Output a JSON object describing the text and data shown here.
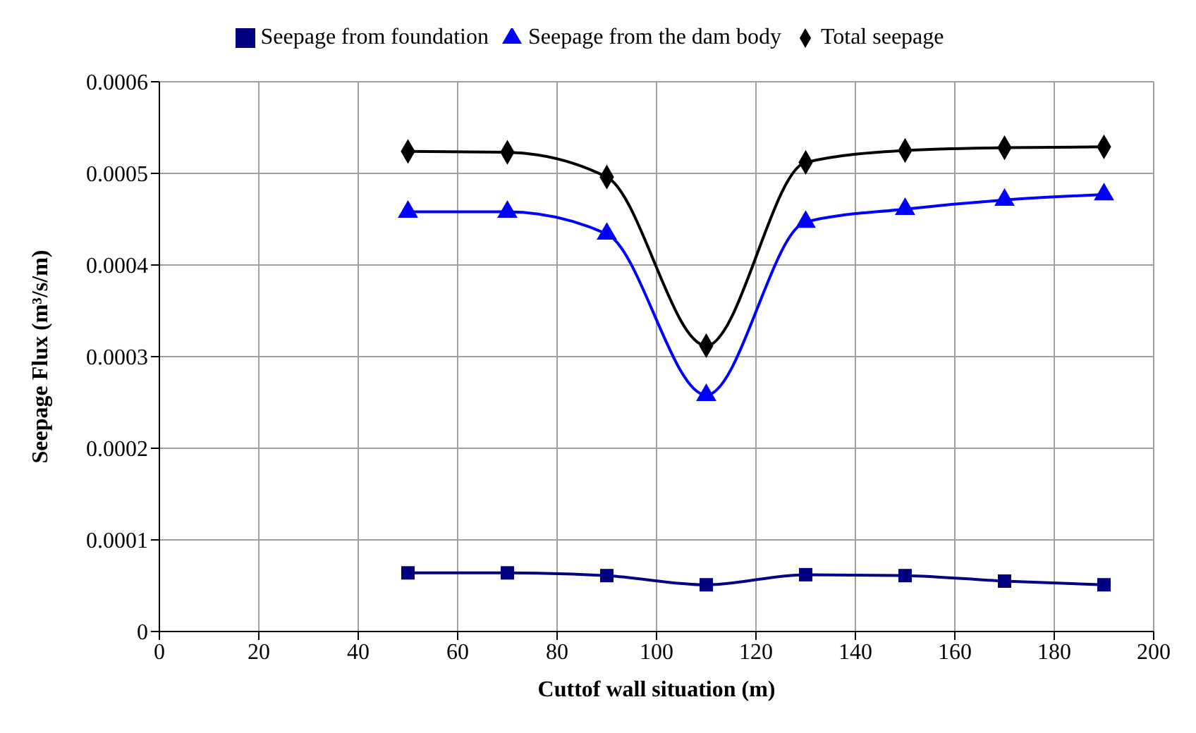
{
  "chart_data": {
    "type": "line",
    "xlabel": "Cuttof wall situation (m)",
    "ylabel": "Seepage Flux (m³/s/m)",
    "x": [
      50,
      70,
      90,
      110,
      130,
      150,
      170,
      190
    ],
    "series": [
      {
        "name": "Total seepage",
        "color": "#000000",
        "marker": "diamond",
        "values": [
          0.000524,
          0.000523,
          0.000496,
          0.000312,
          0.000512,
          0.000525,
          0.000528,
          0.000529
        ]
      },
      {
        "name": "Seepage from foundation",
        "color": "#000080",
        "marker": "square",
        "values": [
          6.4e-05,
          6.4e-05,
          6.1e-05,
          5.1e-05,
          6.2e-05,
          6.1e-05,
          5.5e-05,
          5.1e-05
        ]
      },
      {
        "name": "Seepage from the dam body",
        "color": "#0000ff",
        "marker": "triangle",
        "values": [
          0.000458,
          0.000458,
          0.000434,
          0.000258,
          0.000447,
          0.000461,
          0.000471,
          0.000477
        ]
      }
    ],
    "xlim": [
      0,
      200
    ],
    "xticks": [
      0,
      20,
      40,
      60,
      80,
      100,
      120,
      140,
      160,
      180,
      200
    ],
    "ylim": [
      0,
      0.0006
    ],
    "yticks": [
      0,
      0.0001,
      0.0002,
      0.0003,
      0.0004,
      0.0005,
      0.0006
    ],
    "grid": true,
    "legend": "top"
  }
}
